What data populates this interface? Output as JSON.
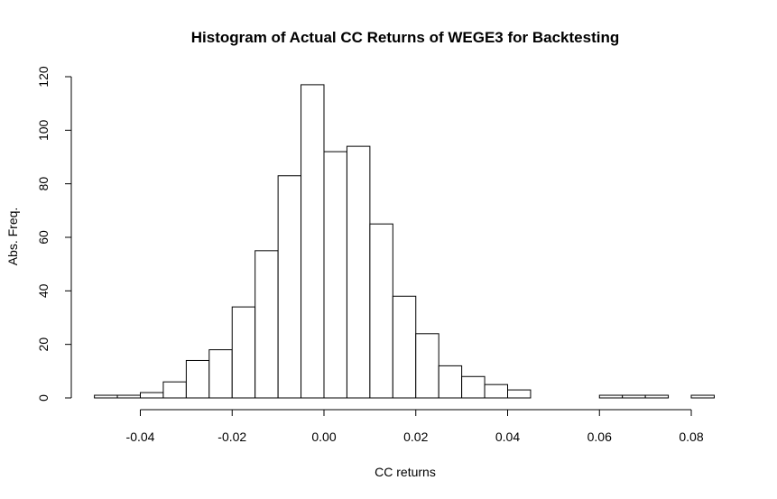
{
  "chart_data": {
    "type": "bar",
    "title": "Histogram of Actual CC Returns of WEGE3 for Backtesting",
    "xlabel": "CC returns",
    "ylabel": "Abs. Freq.",
    "xlim": [
      -0.05,
      0.085
    ],
    "ylim": [
      0,
      120
    ],
    "bin_width": 0.005,
    "bin_start": -0.05,
    "values": [
      1,
      1,
      2,
      6,
      14,
      18,
      34,
      55,
      83,
      117,
      92,
      94,
      65,
      38,
      24,
      12,
      8,
      5,
      3,
      0,
      0,
      0,
      1,
      1,
      1,
      0,
      1
    ],
    "x_ticks": [
      -0.04,
      -0.02,
      0.0,
      0.02,
      0.04,
      0.06,
      0.08
    ],
    "x_tick_labels": [
      "-0.04",
      "-0.02",
      "0.00",
      "0.02",
      "0.04",
      "0.06",
      "0.08"
    ],
    "y_ticks": [
      0,
      20,
      40,
      60,
      80,
      100,
      120
    ],
    "y_tick_labels": [
      "0",
      "20",
      "40",
      "60",
      "80",
      "100",
      "120"
    ],
    "grid": false,
    "colors": {
      "bar_fill": "#ffffff",
      "bar_stroke": "#000000"
    }
  }
}
